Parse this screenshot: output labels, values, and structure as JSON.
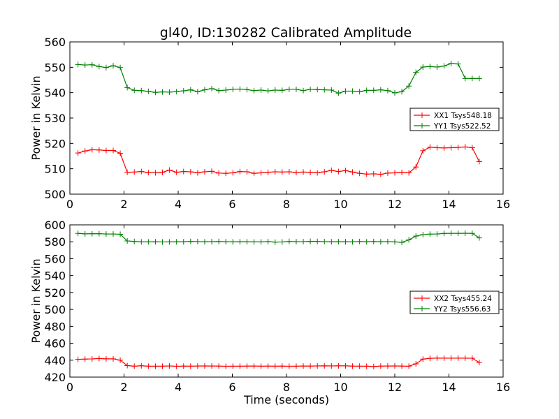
{
  "figure": {
    "title": "gl40, ID:130282 Calibrated Amplitude"
  },
  "chart_data": [
    {
      "type": "line",
      "title": "gl40, ID:130282 Calibrated Amplitude",
      "xlabel": "",
      "ylabel": "Power in Kelvin",
      "xlim": [
        0,
        16
      ],
      "ylim": [
        500,
        560
      ],
      "xticks": [
        "0",
        "2",
        "4",
        "6",
        "8",
        "10",
        "12",
        "14",
        "16"
      ],
      "yticks": [
        "500",
        "510",
        "520",
        "530",
        "540",
        "550",
        "560"
      ],
      "grid": false,
      "legend": "center-right",
      "x": [
        0.3,
        0.56,
        0.82,
        1.08,
        1.34,
        1.6,
        1.86,
        2.12,
        2.38,
        2.64,
        2.9,
        3.16,
        3.42,
        3.68,
        3.94,
        4.2,
        4.46,
        4.72,
        4.98,
        5.24,
        5.5,
        5.76,
        6.02,
        6.28,
        6.54,
        6.8,
        7.06,
        7.32,
        7.58,
        7.84,
        8.1,
        8.36,
        8.62,
        8.88,
        9.14,
        9.4,
        9.66,
        9.92,
        10.18,
        10.44,
        10.7,
        10.96,
        11.22,
        11.48,
        11.74,
        12.0,
        12.26,
        12.52,
        12.78,
        13.04,
        13.3,
        13.56,
        13.82,
        14.08,
        14.34,
        14.6,
        14.86,
        15.12
      ],
      "series": [
        {
          "name": "XX1 Tsys548.18",
          "color": "#ff0000",
          "values": [
            516.2,
            517.0,
            517.5,
            517.4,
            517.2,
            517.2,
            516.1,
            508.6,
            508.7,
            508.9,
            508.5,
            508.4,
            508.6,
            509.5,
            508.6,
            508.9,
            508.8,
            508.4,
            508.8,
            509.0,
            508.3,
            508.2,
            508.4,
            508.9,
            508.8,
            508.2,
            508.4,
            508.6,
            508.8,
            508.7,
            508.8,
            508.5,
            508.7,
            508.6,
            508.4,
            508.8,
            509.4,
            508.9,
            509.3,
            508.7,
            508.2,
            507.9,
            508.0,
            507.8,
            508.3,
            508.4,
            508.6,
            508.4,
            510.7,
            517.1,
            518.5,
            518.3,
            518.2,
            518.3,
            518.4,
            518.6,
            518.3,
            512.8
          ]
        },
        {
          "name": "YY1 Tsys522.52",
          "color": "#008000",
          "values": [
            551.1,
            550.9,
            551.0,
            550.3,
            549.9,
            550.6,
            549.9,
            542.0,
            540.9,
            540.8,
            540.5,
            540.1,
            540.3,
            540.2,
            540.4,
            540.7,
            541.1,
            540.4,
            541.1,
            541.6,
            540.8,
            541.0,
            541.3,
            541.4,
            541.2,
            540.8,
            541.0,
            540.7,
            541.0,
            540.9,
            541.3,
            541.3,
            540.8,
            541.3,
            541.2,
            541.1,
            541.0,
            539.8,
            540.6,
            540.6,
            540.4,
            540.9,
            540.9,
            541.1,
            540.8,
            539.9,
            540.4,
            542.6,
            548.0,
            550.1,
            550.3,
            550.1,
            550.5,
            551.5,
            551.3,
            545.6,
            545.6,
            545.6
          ]
        }
      ]
    },
    {
      "type": "line",
      "title": "",
      "xlabel": "Time (seconds)",
      "ylabel": "Power in Kelvin",
      "xlim": [
        0,
        16
      ],
      "ylim": [
        420,
        600
      ],
      "xticks": [
        "0",
        "2",
        "4",
        "6",
        "8",
        "10",
        "12",
        "14",
        "16"
      ],
      "yticks": [
        "420",
        "440",
        "460",
        "480",
        "500",
        "520",
        "540",
        "560",
        "580",
        "600"
      ],
      "grid": false,
      "legend": "center-right",
      "x": [
        0.3,
        0.56,
        0.82,
        1.08,
        1.34,
        1.6,
        1.86,
        2.12,
        2.38,
        2.64,
        2.9,
        3.16,
        3.42,
        3.68,
        3.94,
        4.2,
        4.46,
        4.72,
        4.98,
        5.24,
        5.5,
        5.76,
        6.02,
        6.28,
        6.54,
        6.8,
        7.06,
        7.32,
        7.58,
        7.84,
        8.1,
        8.36,
        8.62,
        8.88,
        9.14,
        9.4,
        9.66,
        9.92,
        10.18,
        10.44,
        10.7,
        10.96,
        11.22,
        11.48,
        11.74,
        12.0,
        12.26,
        12.52,
        12.78,
        13.04,
        13.3,
        13.56,
        13.82,
        14.08,
        14.34,
        14.6,
        14.86,
        15.12
      ],
      "series": [
        {
          "name": "XX2 Tsys455.24",
          "color": "#ff0000",
          "values": [
            441.0,
            441.3,
            441.5,
            442.0,
            441.6,
            441.6,
            440.0,
            433.6,
            432.9,
            433.4,
            432.9,
            432.9,
            432.9,
            433.2,
            432.8,
            433.0,
            432.9,
            433.1,
            433.2,
            433.1,
            433.0,
            432.8,
            432.9,
            432.9,
            433.0,
            433.1,
            432.9,
            433.0,
            432.9,
            433.0,
            432.8,
            432.9,
            433.1,
            433.0,
            433.2,
            433.3,
            433.2,
            433.3,
            433.3,
            433.0,
            432.9,
            432.9,
            432.5,
            433.0,
            433.1,
            433.2,
            433.0,
            432.9,
            435.7,
            441.3,
            442.2,
            442.5,
            442.4,
            442.4,
            442.4,
            442.4,
            442.3,
            437.2
          ]
        },
        {
          "name": "YY2 Tsys556.63",
          "color": "#008000",
          "values": [
            589.9,
            589.4,
            589.5,
            589.6,
            589.2,
            589.2,
            588.9,
            581.0,
            580.4,
            579.9,
            579.9,
            580.0,
            579.8,
            579.9,
            580.0,
            580.0,
            580.4,
            580.2,
            580.0,
            580.2,
            580.3,
            580.1,
            579.9,
            580.1,
            580.0,
            579.9,
            579.9,
            580.3,
            579.6,
            579.8,
            580.4,
            580.1,
            580.2,
            580.5,
            580.4,
            580.2,
            580.0,
            580.1,
            580.0,
            579.9,
            580.3,
            580.0,
            580.3,
            580.0,
            580.2,
            579.9,
            579.3,
            582.2,
            586.7,
            588.4,
            589.1,
            589.2,
            589.9,
            590.0,
            590.0,
            590.1,
            590.0,
            584.6
          ]
        }
      ]
    }
  ]
}
